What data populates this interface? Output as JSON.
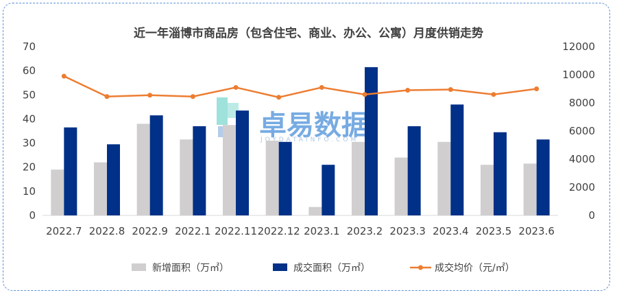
{
  "chart_data": {
    "type": "bar+line",
    "title": "近一年淄博市商品房（包含住宅、商业、办公、公寓）月度供销走势",
    "categories": [
      "2022.7",
      "2022.8",
      "2022.9",
      "2022.1",
      "2022.11",
      "2022.12",
      "2023.1",
      "2023.2",
      "2023.3",
      "2023.4",
      "2023.5",
      "2023.6"
    ],
    "series": [
      {
        "name": "新增面积（万㎡）",
        "type": "bar",
        "axis": "left",
        "color": "#d0cece",
        "values": [
          19,
          22,
          38,
          31.5,
          37.5,
          31,
          3.5,
          30.5,
          24,
          30.5,
          21,
          21.5
        ]
      },
      {
        "name": "成交面积（万㎡）",
        "type": "bar",
        "axis": "left",
        "color": "#003087",
        "values": [
          36.5,
          29.5,
          41.5,
          37,
          43.5,
          30.5,
          21,
          61.5,
          37,
          46,
          34.5,
          31.5
        ]
      },
      {
        "name": "成交均价（元/㎡）",
        "type": "line",
        "axis": "right",
        "color": "#ed7d31",
        "values": [
          9900,
          8450,
          8550,
          8450,
          9100,
          8400,
          9100,
          8600,
          8900,
          8950,
          8600,
          9000
        ]
      }
    ],
    "y_left": {
      "min": 0,
      "max": 70,
      "ticks": [
        "0",
        "10",
        "20",
        "30",
        "40",
        "50",
        "60",
        "70"
      ]
    },
    "y_right": {
      "min": 0,
      "max": 12000,
      "ticks": [
        "0",
        "2000",
        "4000",
        "6000",
        "8000",
        "10000",
        "12000"
      ]
    },
    "grid": false,
    "legend_position": "bottom"
  },
  "watermark": {
    "brand": "卓易数据",
    "site": "JOYDATAINFO.COM",
    "color": "#4a90d9",
    "accent": "#3ec8c0"
  }
}
